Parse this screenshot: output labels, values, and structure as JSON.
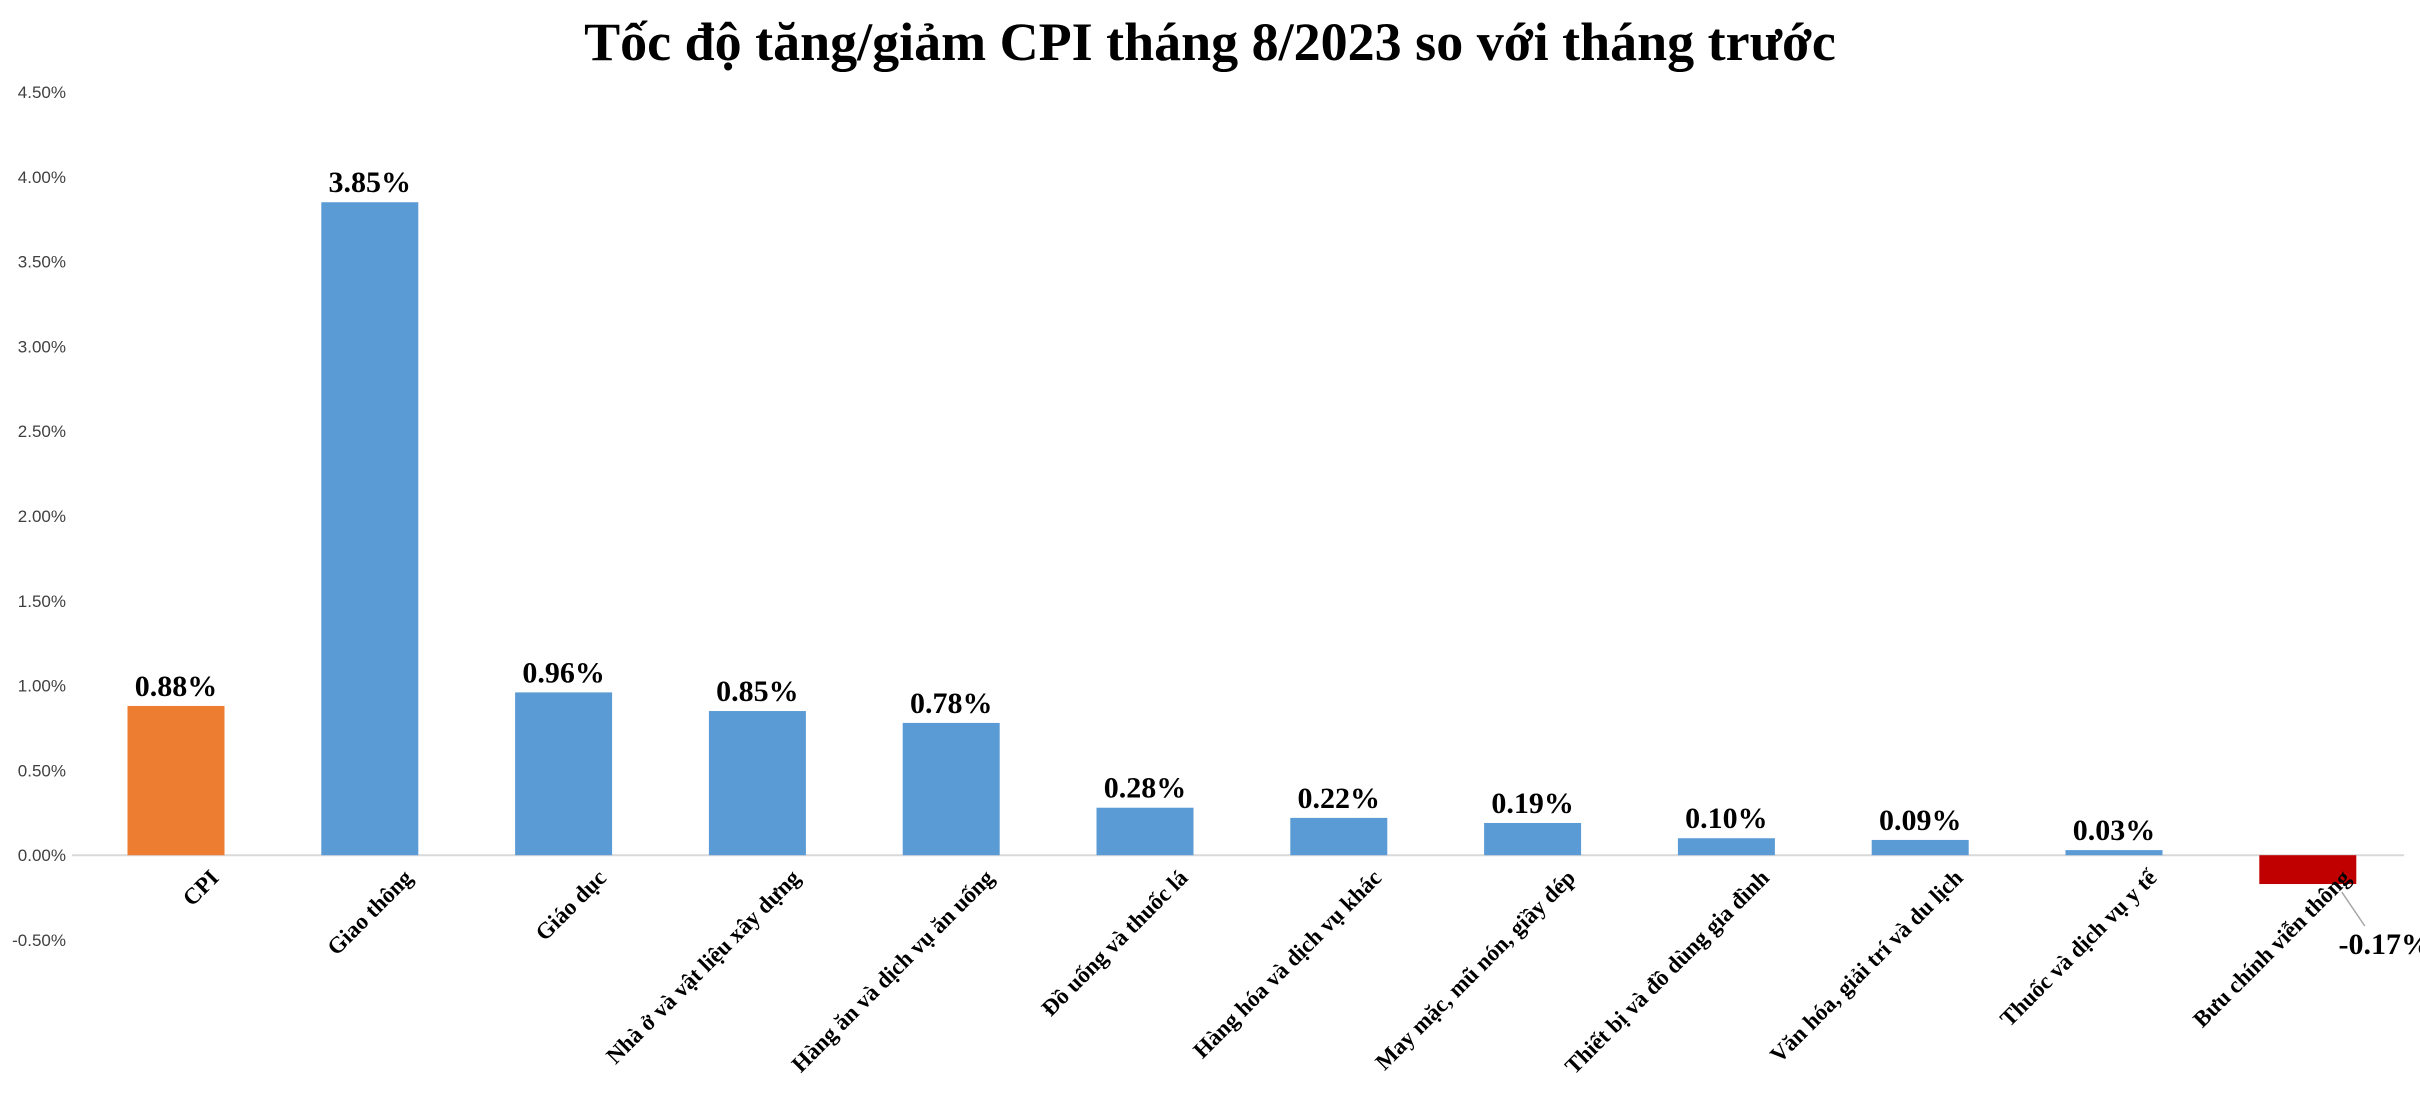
{
  "chart_data": {
    "type": "bar",
    "title": "Tốc độ tăng/giảm CPI tháng 8/2023 so với tháng trước",
    "xlabel": "",
    "ylabel": "",
    "ylim": [
      -0.5,
      4.5
    ],
    "y_ticks": [
      "4.50%",
      "4.00%",
      "3.50%",
      "3.00%",
      "2.50%",
      "2.00%",
      "1.50%",
      "1.00%",
      "0.50%",
      "0.00%",
      "-0.50%"
    ],
    "y_tick_values": [
      4.5,
      4.0,
      3.5,
      3.0,
      2.5,
      2.0,
      1.5,
      1.0,
      0.5,
      0.0,
      -0.5
    ],
    "grid": false,
    "legend": "none",
    "categories": [
      "CPI",
      "Giao thông",
      "Giáo dục",
      "Nhà ở và vật liệu xây dựng",
      "Hàng ăn và dịch vụ ăn uống",
      "Đồ uống và thuốc lá",
      "Hàng hóa và dịch vụ khác",
      "May mặc, mũ nón, giầy dép",
      "Thiết bị và đồ dùng gia đình",
      "Văn hóa, giải trí và du lịch",
      "Thuốc và dịch vụ y tế",
      "Bưu chính viễn thông"
    ],
    "values": [
      0.88,
      3.85,
      0.96,
      0.85,
      0.78,
      0.28,
      0.22,
      0.19,
      0.1,
      0.09,
      0.03,
      -0.17
    ],
    "data_labels": [
      "0.88%",
      "3.85%",
      "0.96%",
      "0.85%",
      "0.78%",
      "0.28%",
      "0.22%",
      "0.19%",
      "0.10%",
      "0.09%",
      "0.03%",
      "-0.17%"
    ],
    "colors": {
      "highlight": "#ED7D31",
      "default": "#5B9BD5",
      "negative": "#C00000",
      "axis": "#D9D9D9",
      "leader": "#A6A6A6"
    },
    "bar_colors": [
      "highlight",
      "default",
      "default",
      "default",
      "default",
      "default",
      "default",
      "default",
      "default",
      "default",
      "default",
      "negative"
    ]
  }
}
